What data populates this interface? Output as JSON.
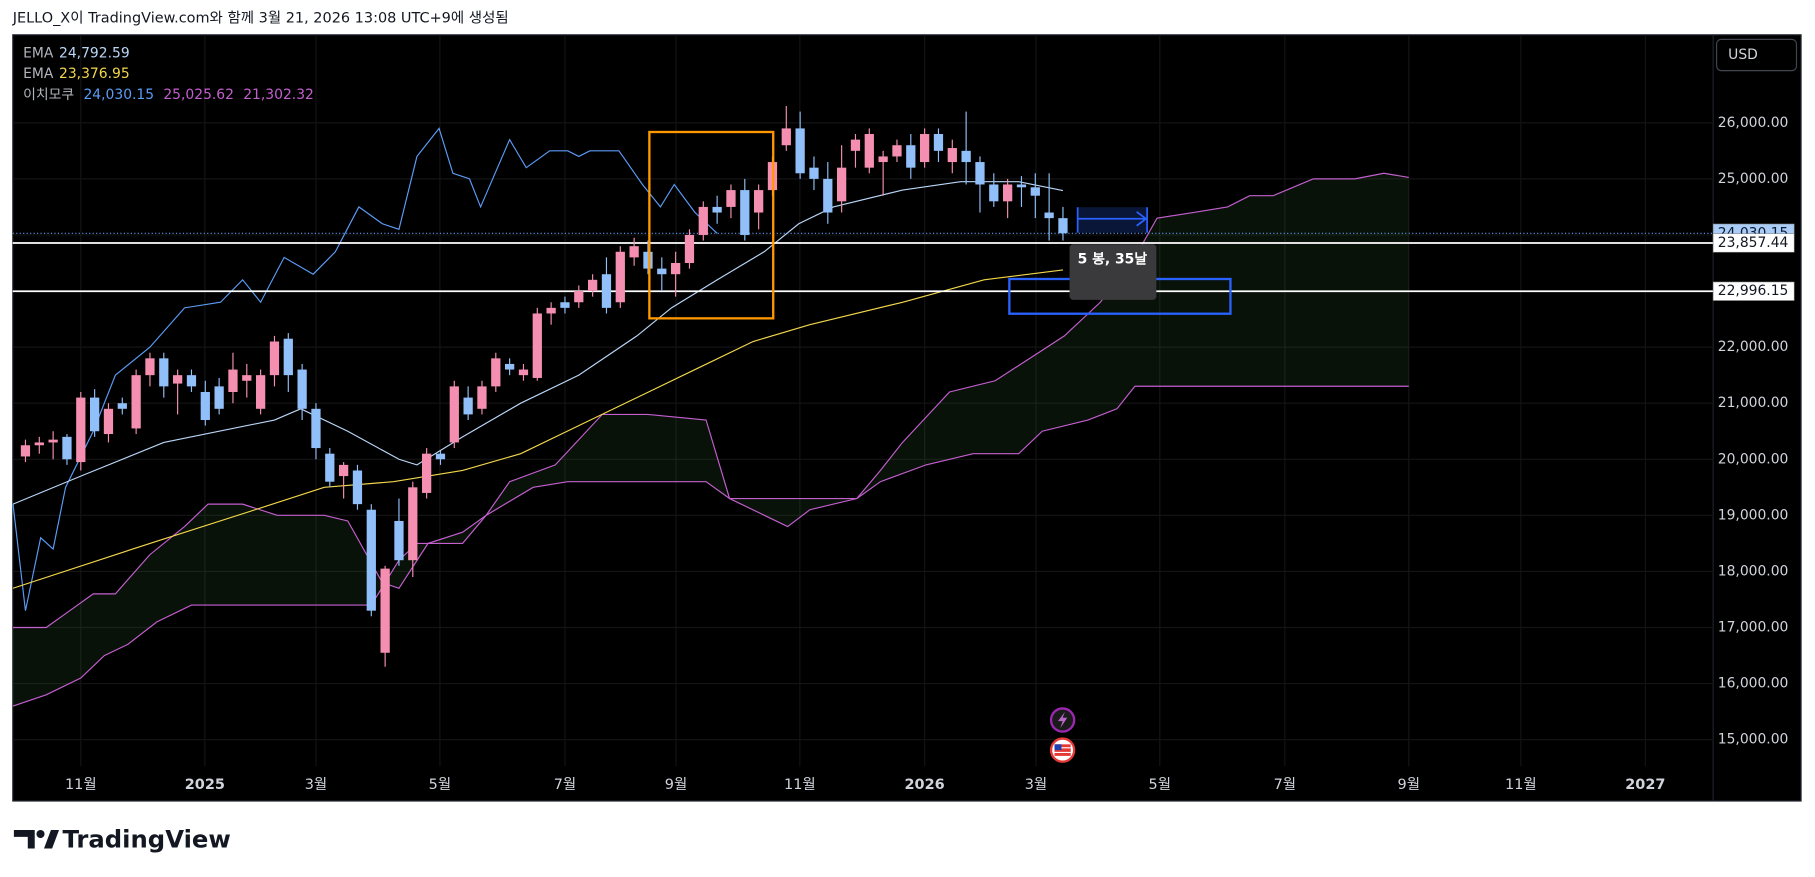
{
  "chart_data": {
    "type": "candlestick",
    "header": "JELLO_X이 TradingView.com와 함께 3월 21, 2026 13:08 UTC+9에 생성됨",
    "currency": "USD",
    "annotation": "5 봉, 35날",
    "branding": "TradingView",
    "ylim": [
      14525,
      27570
    ],
    "yticks": [
      {
        "value": 15000,
        "label": "15,000.00"
      },
      {
        "value": 16000,
        "label": "16,000.00"
      },
      {
        "value": 17000,
        "label": "17,000.00"
      },
      {
        "value": 18000,
        "label": "18,000.00"
      },
      {
        "value": 19000,
        "label": "19,000.00"
      },
      {
        "value": 20000,
        "label": "20,000.00"
      },
      {
        "value": 21000,
        "label": "21,000.00"
      },
      {
        "value": 22000,
        "label": "22,000.00"
      },
      {
        "value": 23000,
        "label": "23,000.00"
      },
      {
        "value": 24000,
        "label": "24,000.00"
      },
      {
        "value": 25000,
        "label": "25,000.00"
      },
      {
        "value": 26000,
        "label": "26,000.00"
      }
    ],
    "xlim": [
      -0.92,
      122
    ],
    "xticks": [
      {
        "value": 4.0,
        "label": "11월"
      },
      {
        "value": 12.97,
        "label": "2025"
      },
      {
        "value": 21.0,
        "label": "3월"
      },
      {
        "value": 29.96,
        "label": "5월"
      },
      {
        "value": 39.0,
        "label": "7월"
      },
      {
        "value": 47.03,
        "label": "9월"
      },
      {
        "value": 55.98,
        "label": "11월"
      },
      {
        "value": 65.0,
        "label": "2026"
      },
      {
        "value": 73.05,
        "label": "3월"
      },
      {
        "value": 82.0,
        "label": "5월"
      },
      {
        "value": 91.04,
        "label": "7월"
      },
      {
        "value": 100.0,
        "label": "9월"
      },
      {
        "value": 108.1,
        "label": "11월"
      },
      {
        "value": 117.1,
        "label": "2027"
      }
    ],
    "grid": true,
    "candles": {
      "up_color": "#f48fb1",
      "down_color": "#90bff9",
      "open": [
        20050,
        20250,
        20300,
        20400,
        19950,
        21100,
        20450,
        21000,
        20550,
        21500,
        21800,
        21350,
        21500,
        21200,
        21300,
        21200,
        21400,
        20900,
        21500,
        22150,
        21600,
        20900,
        20100,
        19700,
        19800,
        19100,
        16550,
        18900,
        18200,
        19400,
        20100,
        20300,
        21100,
        20900,
        21300,
        21700,
        21500,
        21450,
        22600,
        22800,
        22800,
        23000,
        23300,
        22800,
        23600,
        23700,
        23400,
        23300,
        23500,
        24000,
        24500,
        24500,
        24800,
        24400,
        24800,
        25600,
        25900,
        25200,
        25000,
        24600,
        25500,
        25200,
        25300,
        25400,
        25600,
        25300,
        25800,
        25300,
        25500,
        25300,
        24900,
        24600,
        24900,
        24850,
        24400,
        24300
      ],
      "high": [
        20350,
        20400,
        20500,
        20450,
        21200,
        21250,
        21000,
        21100,
        21600,
        21900,
        21900,
        21600,
        21600,
        21400,
        21450,
        21900,
        21700,
        21600,
        22200,
        22250,
        21700,
        21000,
        20200,
        19950,
        19900,
        19200,
        18100,
        19300,
        19600,
        20200,
        20150,
        21400,
        21300,
        21400,
        21900,
        21800,
        21700,
        22700,
        22800,
        22900,
        23100,
        23300,
        23600,
        23800,
        23950,
        23900,
        23600,
        23700,
        24100,
        24600,
        24700,
        24900,
        25000,
        24900,
        25400,
        26300,
        26200,
        25400,
        25300,
        25600,
        25800,
        25900,
        25500,
        25700,
        25800,
        25900,
        25900,
        25700,
        26200,
        25400,
        25100,
        25000,
        25050,
        25100,
        25100,
        24500
      ],
      "low": [
        19950,
        20100,
        20000,
        19900,
        19800,
        20400,
        20300,
        20800,
        20450,
        21300,
        21100,
        20800,
        21200,
        20600,
        20800,
        21000,
        21100,
        20800,
        21300,
        21200,
        20700,
        20000,
        19500,
        19300,
        19100,
        17200,
        16300,
        18100,
        17900,
        19300,
        19900,
        20200,
        20700,
        20800,
        21200,
        21500,
        21400,
        21400,
        22400,
        22600,
        22700,
        22900,
        22600,
        22700,
        23450,
        23300,
        23000,
        22900,
        23400,
        23900,
        24200,
        24300,
        23900,
        24100,
        24700,
        25500,
        25000,
        24800,
        24200,
        24400,
        25200,
        25100,
        24700,
        25300,
        25000,
        25200,
        25300,
        25100,
        24900,
        24400,
        24500,
        24300,
        24500,
        24300,
        23900,
        23900
      ],
      "close": [
        20250,
        20300,
        20350,
        20000,
        21100,
        20500,
        20900,
        20900,
        21500,
        21800,
        21300,
        21500,
        21300,
        20700,
        20900,
        21600,
        21500,
        21500,
        22100,
        21500,
        20900,
        20200,
        19600,
        19900,
        19200,
        17300,
        18050,
        18200,
        19500,
        20100,
        20000,
        21300,
        20800,
        21300,
        21800,
        21600,
        21600,
        22600,
        22700,
        22700,
        23000,
        23200,
        22700,
        23700,
        23800,
        23400,
        23300,
        23500,
        24000,
        24500,
        24400,
        24800,
        24000,
        24800,
        25300,
        25900,
        25100,
        25000,
        24400,
        25200,
        25700,
        25800,
        25400,
        25600,
        25200,
        25800,
        25500,
        25550,
        25300,
        24900,
        24600,
        24900,
        24850,
        24700,
        24300,
        24030.15
      ]
    },
    "series": [
      {
        "name": "EMA",
        "color": "#b9d6f7",
        "legend_label": "24,792.59",
        "x": [
          -0.9,
          4.0,
          10.0,
          18.0,
          19.9,
          23.3,
          27.0,
          28.3,
          31.6,
          35.8,
          40.0,
          44.2,
          46.7,
          50.0,
          53.4,
          55.9,
          58.4,
          63.4,
          67.6,
          71.8,
          75
        ],
        "values": [
          19200,
          19700,
          20300,
          20700,
          20900,
          20500,
          20000,
          19900,
          20400,
          21000,
          21500,
          22200,
          22700,
          23200,
          23700,
          24200,
          24500,
          24800,
          24950,
          24950,
          24792.59
        ]
      },
      {
        "name": "EMA",
        "color": "#f2d64b",
        "legend_label": "23,376.95",
        "x": [
          -0.9,
          9.0,
          16.6,
          21.6,
          26.6,
          31.6,
          35.8,
          40.0,
          44.2,
          48.4,
          52.6,
          56.7,
          63.4,
          69.3,
          75
        ],
        "values": [
          17700,
          18500,
          19100,
          19500,
          19600,
          19800,
          20100,
          20600,
          21100,
          21600,
          22100,
          22400,
          22800,
          23200,
          23376.95
        ]
      }
    ],
    "ichimoku": {
      "name": "이치모쿠",
      "cloud_color": "rgba(76,175,80,0.10)",
      "lines": [
        {
          "color": "#5b9cf6",
          "legend_label": "24,030.15",
          "x": [
            -0.9,
            0,
            1.1,
            2.0,
            2.9,
            4.9,
            6.5,
            9.0,
            11.5,
            14.1,
            15.7,
            17.0,
            18.7,
            20.8,
            22.4,
            24.1,
            25.8,
            27.0,
            28.3,
            29.9,
            30.9,
            32.1,
            32.9,
            35.0,
            36.2,
            37.9,
            39.2,
            40.0,
            40.8,
            42.9,
            44.6,
            45.9,
            46.9,
            48.4,
            50.0
          ],
          "values": [
            19200,
            17300,
            18600,
            18400,
            19500,
            20500,
            21500,
            22000,
            22700,
            22800,
            23200,
            22800,
            23600,
            23300,
            23700,
            24500,
            24200,
            24100,
            25400,
            25900,
            25100,
            25000,
            24500,
            25700,
            25200,
            25500,
            25500,
            25400,
            25500,
            25500,
            24900,
            24500,
            24900,
            24400,
            24030.15
          ]
        },
        {
          "color": "#c45fd0",
          "legend_label": "25,025.62",
          "x": [
            -0.9,
            1.5,
            3.2,
            4.9,
            6.5,
            9.0,
            11.5,
            13.2,
            15.7,
            18.2,
            21.6,
            23.3,
            25.8,
            27.0,
            29.1,
            31.6,
            33.3,
            35.0,
            38.3,
            41.7,
            45.0,
            49.2,
            50.9,
            55.1,
            56.7,
            60.1,
            61.8,
            63.4,
            66.8,
            70.1,
            72.6,
            75.1,
            77.7,
            80.2,
            81.8,
            84.4,
            86.9,
            88.5,
            90.2,
            93.1,
            96.1,
            98.2,
            100
          ],
          "values": [
            17000,
            17000,
            17300,
            17600,
            17600,
            18300,
            18800,
            19200,
            19200,
            19000,
            19000,
            18900,
            17800,
            17700,
            18500,
            18700,
            19000,
            19600,
            19900,
            20800,
            20800,
            20700,
            19300,
            18800,
            19100,
            19300,
            19800,
            20300,
            21200,
            21400,
            21800,
            22200,
            22800,
            23600,
            24300,
            24400,
            24500,
            24700,
            24700,
            25000,
            25000,
            25100,
            25025.62
          ]
        },
        {
          "color": "#c45fd0",
          "legend_label": "21,302.32",
          "x": [
            -0.9,
            1.5,
            4.0,
            5.7,
            7.4,
            9.5,
            12.0,
            25.0,
            27.0,
            28.3,
            31.6,
            33.3,
            36.7,
            39.2,
            49.2,
            50.9,
            60.1,
            61.8,
            65.1,
            68.5,
            71.8,
            73.5,
            76.8,
            78.9,
            80.2,
            100
          ],
          "values": [
            15600,
            15800,
            16100,
            16500,
            16700,
            17100,
            17400,
            17400,
            18200,
            18500,
            18500,
            19000,
            19500,
            19600,
            19600,
            19300,
            19300,
            19600,
            19900,
            20100,
            20100,
            20500,
            20700,
            20900,
            21302.32,
            21302.32
          ]
        }
      ]
    },
    "last_price": {
      "value": 24030.15,
      "label": "24,030.15"
    },
    "price_lines": [
      {
        "value": 23857.44,
        "label": "23,857.44"
      },
      {
        "value": 22996.15,
        "label": "22,996.15"
      }
    ]
  }
}
